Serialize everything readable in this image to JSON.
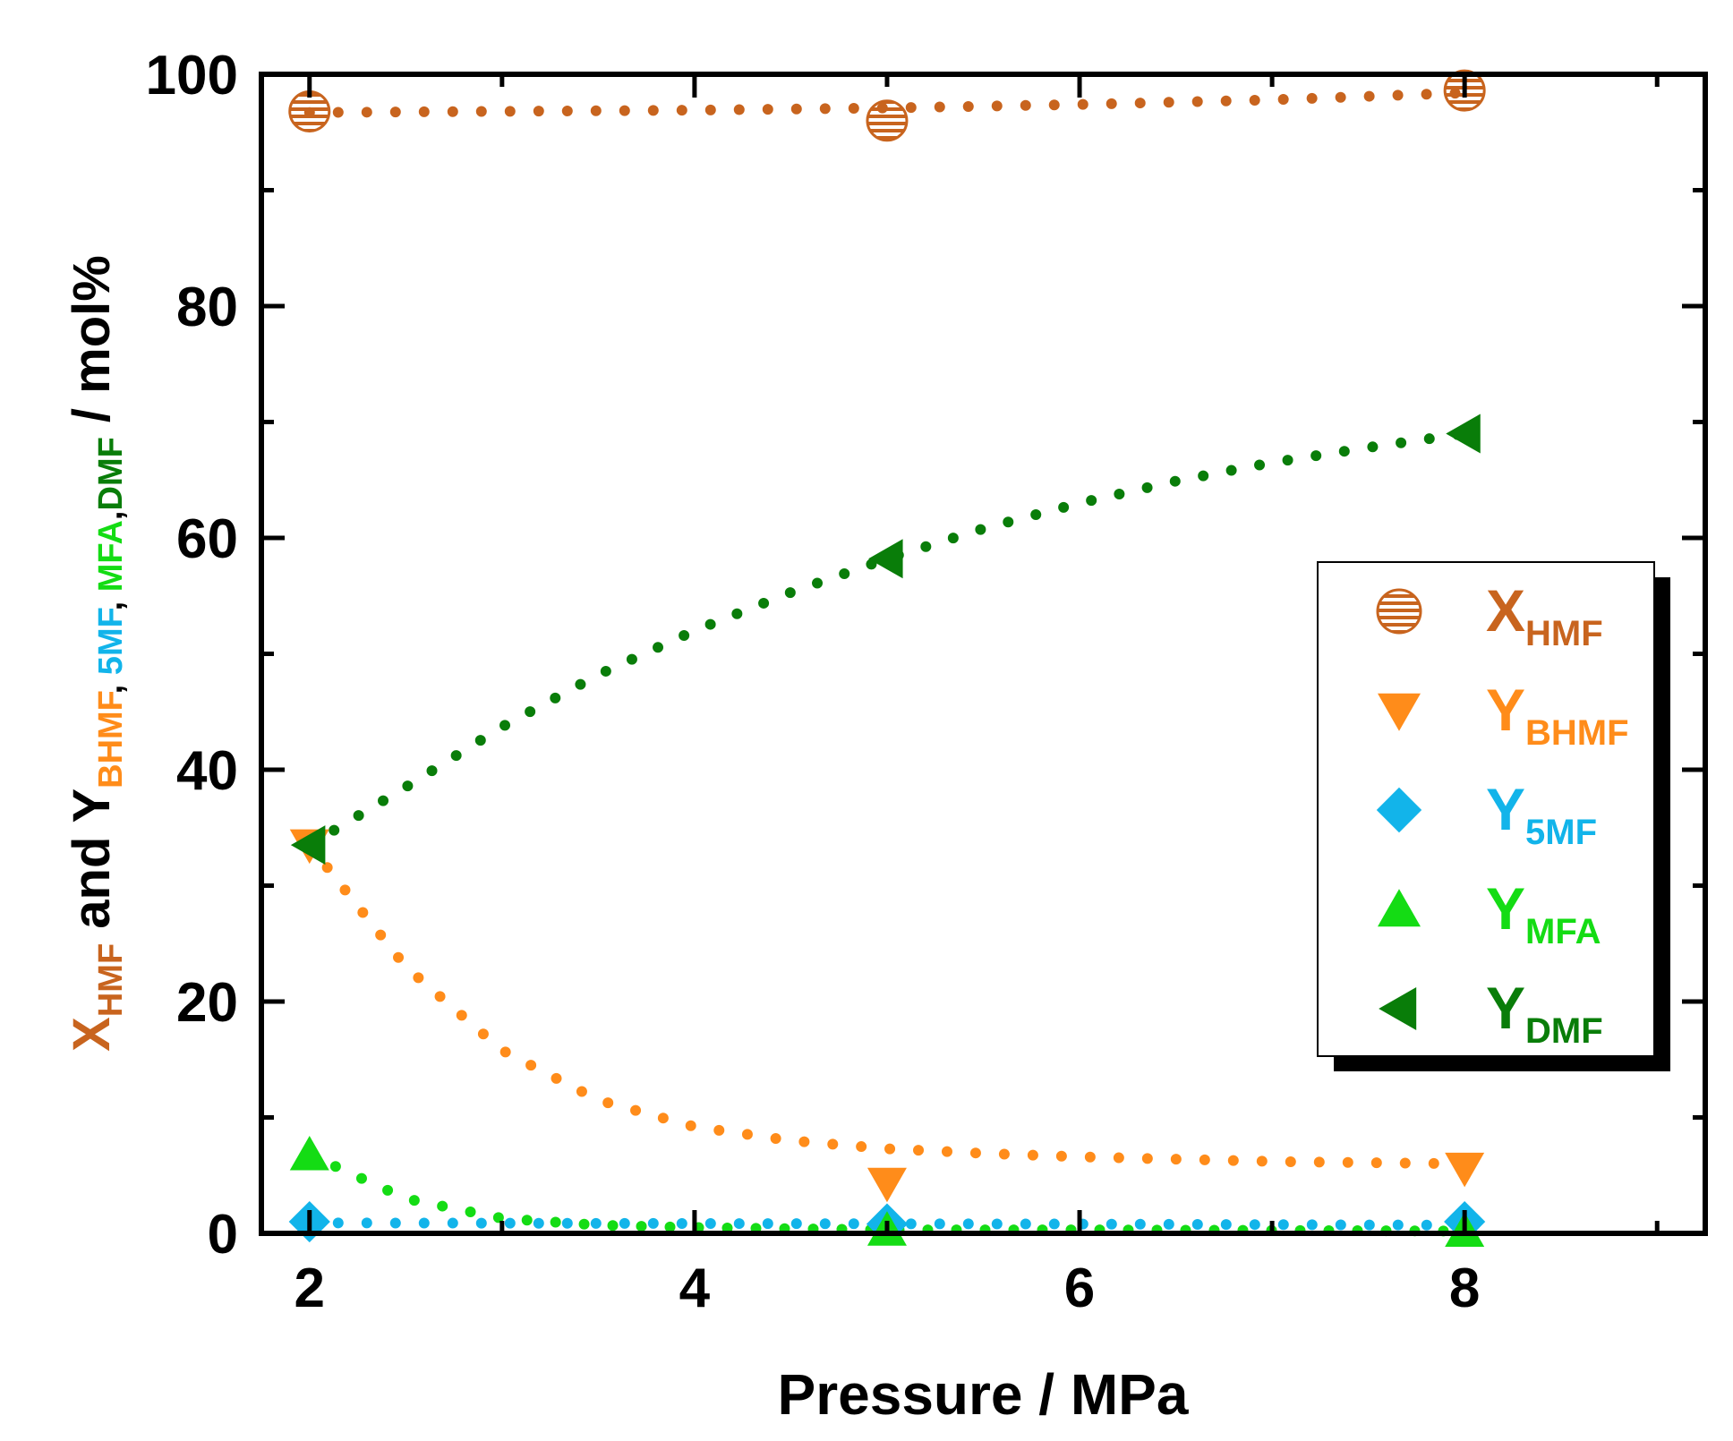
{
  "chart_data": {
    "type": "scatter",
    "xlabel": "Pressure / MPa",
    "ylabel": {
      "x_letter": "X",
      "x_sub": "HMF",
      "and_y": " and Y",
      "sub_bhmf": "BHMF",
      "sep1": ", ",
      "sub_5mf": "5MF",
      "sep2": ", ",
      "sub_mfa": "MFA",
      "sep3": ",",
      "sub_dmf": "DMF",
      "unit": " / mol%"
    },
    "xlim": [
      1.75,
      9.25
    ],
    "ylim": [
      0,
      100
    ],
    "x_ticks": [
      2,
      4,
      6,
      8
    ],
    "x_tick_labels": [
      "2",
      "4",
      "6",
      "8"
    ],
    "y_ticks": [
      0,
      20,
      40,
      60,
      80,
      100
    ],
    "y_tick_labels": [
      "0",
      "20",
      "40",
      "60",
      "80",
      "100"
    ],
    "legend_position": "right",
    "series": [
      {
        "name": "X",
        "sub": "HMF",
        "marker": "hatched-circle",
        "color": "#c8641e",
        "x": [
          2,
          5,
          8
        ],
        "y": [
          96.8,
          96.0,
          98.6
        ],
        "fit": [
          [
            2,
            96.7
          ],
          [
            3,
            96.8
          ],
          [
            4,
            96.9
          ],
          [
            5,
            97.1
          ],
          [
            6,
            97.4
          ],
          [
            7,
            97.8
          ],
          [
            8,
            98.4
          ]
        ]
      },
      {
        "name": "Y",
        "sub": "BHMF",
        "marker": "triangle-down",
        "color": "#ff8c1a",
        "x": [
          2,
          5,
          8
        ],
        "y": [
          33.5,
          4.3,
          5.6
        ],
        "fit": [
          [
            2,
            33.5
          ],
          [
            2.5,
            23.0
          ],
          [
            3,
            15.8
          ],
          [
            3.5,
            11.5
          ],
          [
            4,
            9.2
          ],
          [
            4.5,
            8.0
          ],
          [
            5,
            7.3
          ],
          [
            5.5,
            6.9
          ],
          [
            6,
            6.6
          ],
          [
            7,
            6.2
          ],
          [
            8,
            6.0
          ]
        ]
      },
      {
        "name": "Y",
        "sub": "5MF",
        "marker": "diamond",
        "color": "#12b4ea",
        "x": [
          2,
          5,
          8
        ],
        "y": [
          1.0,
          0.8,
          1.0
        ],
        "fit": [
          [
            2,
            0.9
          ],
          [
            4,
            0.85
          ],
          [
            6,
            0.8
          ],
          [
            8,
            0.7
          ]
        ]
      },
      {
        "name": "Y",
        "sub": "MFA",
        "marker": "triangle-up",
        "color": "#14dc14",
        "x": [
          2,
          5,
          8
        ],
        "y": [
          6.8,
          0.3,
          0.2
        ],
        "fit": [
          [
            2,
            6.8
          ],
          [
            2.5,
            3.0
          ],
          [
            3,
            1.3
          ],
          [
            3.5,
            0.7
          ],
          [
            4,
            0.5
          ],
          [
            5,
            0.3
          ],
          [
            6,
            0.3
          ],
          [
            8,
            0.2
          ]
        ]
      },
      {
        "name": "Y",
        "sub": "DMF",
        "marker": "triangle-left",
        "color": "#097d09",
        "x": [
          2,
          5,
          8
        ],
        "y": [
          33.5,
          58.2,
          69.0
        ],
        "fit": [
          [
            2,
            33.5
          ],
          [
            2.5,
            38.5
          ],
          [
            3,
            43.7
          ],
          [
            3.5,
            48.2
          ],
          [
            4,
            52.0
          ],
          [
            4.5,
            55.3
          ],
          [
            5,
            58.2
          ],
          [
            5.5,
            60.8
          ],
          [
            6,
            63.0
          ],
          [
            6.5,
            64.9
          ],
          [
            7,
            66.5
          ],
          [
            7.5,
            67.8
          ],
          [
            8,
            69.0
          ]
        ]
      }
    ]
  }
}
